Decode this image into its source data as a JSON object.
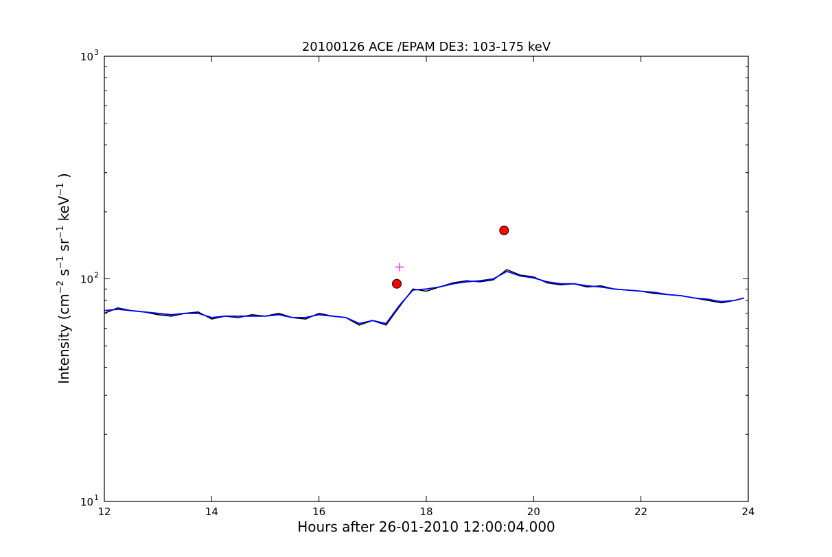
{
  "chart_data": {
    "type": "line",
    "title": "20100126 ACE /EPAM DE3: 103-175 keV",
    "xlabel": "Hours after 26-01-2010 12:00:04.000",
    "ylabel": "Intensity (cm⁻² s⁻¹ sr⁻¹ keV⁻¹)",
    "xlim": [
      12,
      24
    ],
    "ylim": [
      10,
      1000
    ],
    "yscale": "log",
    "grid": false,
    "x_ticks": [
      12,
      14,
      16,
      18,
      20,
      22,
      24
    ],
    "x_tick_labels": [
      "12",
      "14",
      "16",
      "18",
      "20",
      "22",
      "24"
    ],
    "y_ticks": [
      10,
      100,
      1000
    ],
    "y_tick_labels": [
      "10",
      "10",
      "10"
    ],
    "y_tick_exponents": [
      "1",
      "2",
      "3"
    ],
    "colors": {
      "raw": "#000000",
      "smoothed": "#0000ff",
      "marker": "#ff0000",
      "cross": "#ff00ff"
    },
    "series": [
      {
        "style": "raw",
        "x": [
          12.0,
          12.25,
          12.5,
          12.75,
          13.0,
          13.25,
          13.5,
          13.75,
          14.0,
          14.25,
          14.5,
          14.75,
          15.0,
          15.25,
          15.5,
          15.75,
          16.0,
          16.25,
          16.5,
          16.75,
          17.0,
          17.25,
          17.5,
          17.75,
          18.0,
          18.25,
          18.5,
          18.75,
          19.0,
          19.25,
          19.5,
          19.75,
          20.0,
          20.25,
          20.5,
          20.75,
          21.0,
          21.25,
          21.5,
          21.75,
          22.0,
          22.25,
          22.5,
          22.75,
          23.0,
          23.25,
          23.5,
          23.75,
          23.92
        ],
        "y": [
          70,
          74,
          72,
          71,
          69,
          68,
          70,
          71,
          66,
          68,
          67,
          69,
          68,
          70,
          67,
          66,
          70,
          68,
          67,
          62,
          65,
          62,
          75,
          90,
          88,
          92,
          96,
          98,
          97,
          99,
          110,
          104,
          102,
          96,
          94,
          95,
          92,
          93,
          90,
          89,
          88,
          86,
          85,
          84,
          82,
          80,
          78,
          80,
          82
        ]
      },
      {
        "style": "smoothed",
        "x": [
          12.0,
          12.25,
          12.5,
          12.75,
          13.0,
          13.25,
          13.5,
          13.75,
          14.0,
          14.25,
          14.5,
          14.75,
          15.0,
          15.25,
          15.5,
          15.75,
          16.0,
          16.25,
          16.5,
          16.75,
          17.0,
          17.25,
          17.5,
          17.75,
          18.0,
          18.25,
          18.5,
          18.75,
          19.0,
          19.25,
          19.5,
          19.75,
          20.0,
          20.25,
          20.5,
          20.75,
          21.0,
          21.25,
          21.5,
          21.75,
          22.0,
          22.25,
          22.5,
          22.75,
          23.0,
          23.25,
          23.5,
          23.75,
          23.92
        ],
        "y": [
          72,
          73,
          72,
          71,
          70,
          69,
          70,
          70,
          67,
          68,
          68,
          68,
          68,
          69,
          67,
          67,
          69,
          68,
          67,
          63,
          65,
          63,
          76,
          89,
          90,
          92,
          95,
          97,
          98,
          100,
          108,
          103,
          101,
          97,
          95,
          95,
          93,
          92,
          90,
          89,
          88,
          87,
          85,
          84,
          82,
          81,
          79,
          80,
          82
        ]
      }
    ],
    "markers": [
      {
        "shape": "circle",
        "x": 19.45,
        "y": 165
      },
      {
        "shape": "circle",
        "x": 17.45,
        "y": 95
      },
      {
        "shape": "plus",
        "x": 17.5,
        "y": 113
      }
    ]
  }
}
